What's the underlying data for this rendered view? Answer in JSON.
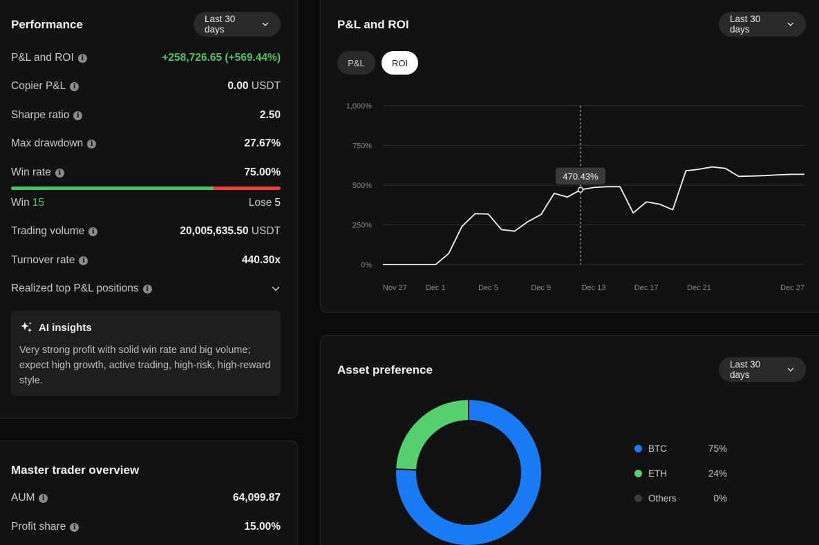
{
  "performance": {
    "title": "Performance",
    "period": "Last 30 days",
    "pnl_roi": {
      "label": "P&L and ROI",
      "value": "+258,726.65 (+569.44%)"
    },
    "copier_pnl": {
      "label": "Copier P&L",
      "value": "0.00",
      "unit": "USDT"
    },
    "sharpe": {
      "label": "Sharpe ratio",
      "value": "2.50"
    },
    "max_drawdown": {
      "label": "Max drawdown",
      "value": "27.67%"
    },
    "win_rate": {
      "label": "Win rate",
      "value": "75.00%",
      "fraction": 0.75
    },
    "win": {
      "label": "Win",
      "count": "15"
    },
    "lose": {
      "label": "Lose",
      "count": "5"
    },
    "trading_volume": {
      "label": "Trading volume",
      "value": "20,005,635.50",
      "unit": "USDT"
    },
    "turnover": {
      "label": "Turnover rate",
      "value": "440.30x"
    },
    "realized_top": {
      "label": "Realized top P&L positions"
    },
    "ai": {
      "title": "AI insights",
      "text": "Very strong profit with solid win rate and big volume; expect high growth, active trading, high-risk, high-reward style."
    }
  },
  "master": {
    "title": "Master trader overview",
    "aum": {
      "label": "AUM",
      "value": "64,099.87"
    },
    "profit_share": {
      "label": "Profit share",
      "value": "15.00%"
    }
  },
  "pnl_chart": {
    "title": "P&L and ROI",
    "period": "Last 30 days",
    "tabs": [
      {
        "label": "P&L",
        "active": false
      },
      {
        "label": "ROI",
        "active": true
      }
    ],
    "tooltip": "470.43%"
  },
  "chart_data": {
    "type": "line",
    "title": "P&L and ROI",
    "series": [
      {
        "name": "ROI",
        "values": [
          0,
          0,
          0,
          0,
          0,
          70,
          240,
          320,
          318,
          220,
          210,
          270,
          315,
          448,
          425,
          470.43,
          485,
          490,
          490,
          325,
          395,
          380,
          345,
          590,
          600,
          615,
          605,
          555,
          557,
          560,
          565,
          568,
          568
        ]
      }
    ],
    "x_tick_labels": [
      "Nov 27",
      "Dec 1",
      "Dec 5",
      "Dec 9",
      "Dec 13",
      "Dec 17",
      "Dec 21",
      "Dec 27"
    ],
    "y_tick_labels": [
      "1,000%",
      "750%",
      "500%",
      "250%",
      "0%"
    ],
    "y_ticks": [
      1000,
      750,
      500,
      250,
      0
    ],
    "ylim": [
      0,
      1000
    ],
    "grid": true,
    "highlight_index": 15,
    "highlight_label": "470.43%"
  },
  "asset": {
    "title": "Asset preference",
    "period": "Last 30 days",
    "legend": [
      {
        "name": "BTC",
        "pct": "75%",
        "color": "#1a7cf5",
        "value": 75
      },
      {
        "name": "ETH",
        "pct": "24%",
        "color": "#55d06e",
        "value": 24
      },
      {
        "name": "Others",
        "pct": "0%",
        "color": "#3a3a3a",
        "value": 0
      }
    ]
  }
}
